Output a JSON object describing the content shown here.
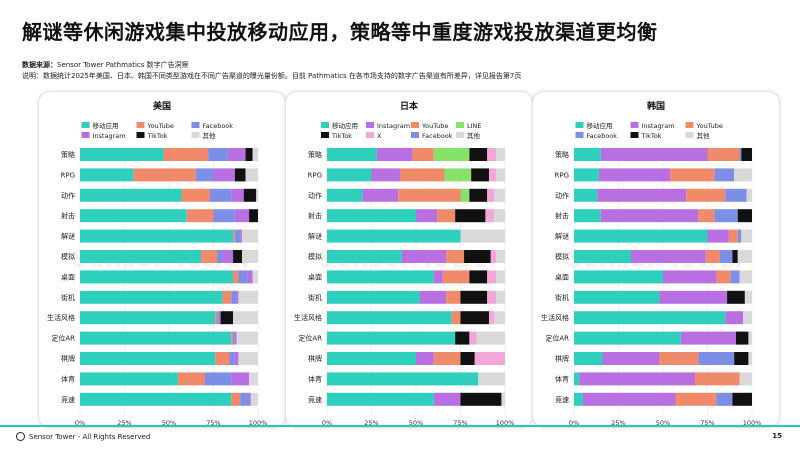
{
  "page": {
    "title": "解谜等休闲游戏集中投放移动应用，策略等中重度游戏投放渠道更均衡",
    "source_label": "数据来源：",
    "source_text": "Sensor Tower Pathmatics 数字广告洞察",
    "note": "说明：数据统计2025年美国、日本、韩国不同类型游戏在不同广告渠道的曝光量份额。目前 Pathmatics 在各市场支持的数字广告渠道有所差异，详见报告第7页",
    "footer": "Sensor Tower - All Rights Reserved",
    "page_number": "15",
    "watermark": "Sensor Tower"
  },
  "colors": {
    "移动应用": "#2fcfbd",
    "YouTube": "#f08a6b",
    "Facebook": "#7d8ee6",
    "Instagram": "#b86fe2",
    "TikTok": "#111111",
    "其他": "#d9d9d9",
    "X": "#f3a6d8",
    "LINE": "#87e26a"
  },
  "chart_data": [
    {
      "type": "bar",
      "stacked": "horizontal-100%",
      "title": "美国",
      "legend": [
        "移动应用",
        "YouTube",
        "Facebook",
        "Instagram",
        "TikTok",
        "其他"
      ],
      "categories": [
        "策略",
        "RPG",
        "动作",
        "射击",
        "解谜",
        "模拟",
        "桌面",
        "街机",
        "生活风格",
        "定位AR",
        "棋牌",
        "体育",
        "竞速"
      ],
      "x_ticks": [
        "0%",
        "25%",
        "50%",
        "75%",
        "100%"
      ],
      "xlim": [
        0,
        100
      ],
      "series": [
        {
          "name": "移动应用",
          "values": [
            47,
            30,
            57,
            60,
            86,
            68,
            86,
            80,
            76,
            85,
            76,
            55,
            85
          ]
        },
        {
          "name": "YouTube",
          "values": [
            25,
            35,
            16,
            15,
            1,
            9,
            3,
            5,
            1,
            1,
            8,
            15,
            5
          ]
        },
        {
          "name": "Facebook",
          "values": [
            11,
            10,
            12,
            12,
            3,
            3,
            5,
            3,
            1,
            1,
            3,
            15,
            5
          ]
        },
        {
          "name": "Instagram",
          "values": [
            10,
            12,
            7,
            8,
            1,
            6,
            3,
            1,
            1,
            1,
            2,
            10,
            1
          ]
        },
        {
          "name": "TikTok",
          "values": [
            4,
            6,
            7,
            5,
            0,
            5,
            0,
            0,
            7,
            0,
            0,
            0,
            0
          ]
        },
        {
          "name": "其他",
          "values": [
            3,
            7,
            1,
            0,
            9,
            9,
            3,
            11,
            14,
            12,
            11,
            5,
            4
          ]
        }
      ]
    },
    {
      "type": "bar",
      "stacked": "horizontal-100%",
      "title": "日本",
      "legend": [
        "移动应用",
        "Instagram",
        "YouTube",
        "LINE",
        "TikTok",
        "X",
        "Facebook",
        "其他"
      ],
      "categories": [
        "策略",
        "RPG",
        "动作",
        "射击",
        "解谜",
        "模拟",
        "桌面",
        "街机",
        "生活风格",
        "定位AR",
        "棋牌",
        "体育",
        "竞速"
      ],
      "x_ticks": [
        "0%",
        "25%",
        "50%",
        "75%",
        "100%"
      ],
      "xlim": [
        0,
        100
      ],
      "series": [
        {
          "name": "移动应用",
          "values": [
            28,
            25,
            20,
            50,
            75,
            42,
            60,
            52,
            70,
            72,
            50,
            85,
            60
          ]
        },
        {
          "name": "Instagram",
          "values": [
            20,
            16,
            20,
            12,
            0,
            25,
            5,
            15,
            0,
            0,
            10,
            0,
            15
          ]
        },
        {
          "name": "YouTube",
          "values": [
            12,
            25,
            35,
            10,
            0,
            10,
            15,
            8,
            5,
            0,
            15,
            0,
            0
          ]
        },
        {
          "name": "LINE",
          "values": [
            20,
            15,
            5,
            0,
            0,
            0,
            0,
            0,
            0,
            0,
            0,
            0,
            0
          ]
        },
        {
          "name": "TikTok",
          "values": [
            10,
            10,
            10,
            17,
            0,
            15,
            10,
            15,
            16,
            8,
            8,
            0,
            23
          ]
        },
        {
          "name": "X",
          "values": [
            5,
            4,
            4,
            5,
            0,
            3,
            5,
            5,
            3,
            4,
            17,
            0,
            0
          ]
        },
        {
          "name": "Facebook",
          "values": [
            0,
            0,
            0,
            0,
            0,
            0,
            0,
            0,
            0,
            0,
            0,
            0,
            0
          ]
        },
        {
          "name": "其他",
          "values": [
            5,
            5,
            6,
            6,
            25,
            5,
            5,
            5,
            6,
            16,
            0,
            15,
            2
          ]
        }
      ]
    },
    {
      "type": "bar",
      "stacked": "horizontal-100%",
      "title": "韩国",
      "legend": [
        "移动应用",
        "Instagram",
        "YouTube",
        "Facebook",
        "TikTok",
        "其他"
      ],
      "categories": [
        "策略",
        "RPG",
        "动作",
        "射击",
        "解谜",
        "模拟",
        "桌面",
        "街机",
        "生活风格",
        "定位AR",
        "棋牌",
        "体育",
        "竞速"
      ],
      "x_ticks": [
        "0%",
        "25%",
        "50%",
        "75%",
        "100%"
      ],
      "xlim": [
        0,
        100
      ],
      "series": [
        {
          "name": "移动应用",
          "values": [
            15,
            14,
            13,
            15,
            75,
            32,
            50,
            48,
            85,
            60,
            16,
            3,
            5
          ]
        },
        {
          "name": "Instagram",
          "values": [
            60,
            40,
            50,
            55,
            12,
            42,
            30,
            38,
            10,
            31,
            32,
            65,
            52
          ]
        },
        {
          "name": "YouTube",
          "values": [
            18,
            25,
            22,
            9,
            5,
            8,
            8,
            0,
            0,
            0,
            22,
            25,
            23
          ]
        },
        {
          "name": "Facebook",
          "values": [
            1,
            11,
            12,
            13,
            2,
            7,
            5,
            0,
            0,
            0,
            20,
            0,
            9
          ]
        },
        {
          "name": "TikTok",
          "values": [
            6,
            0,
            0,
            8,
            0,
            3,
            0,
            10,
            0,
            7,
            8,
            0,
            11
          ]
        },
        {
          "name": "其他",
          "values": [
            0,
            10,
            3,
            0,
            6,
            8,
            7,
            4,
            5,
            2,
            2,
            7,
            0
          ]
        }
      ]
    }
  ]
}
